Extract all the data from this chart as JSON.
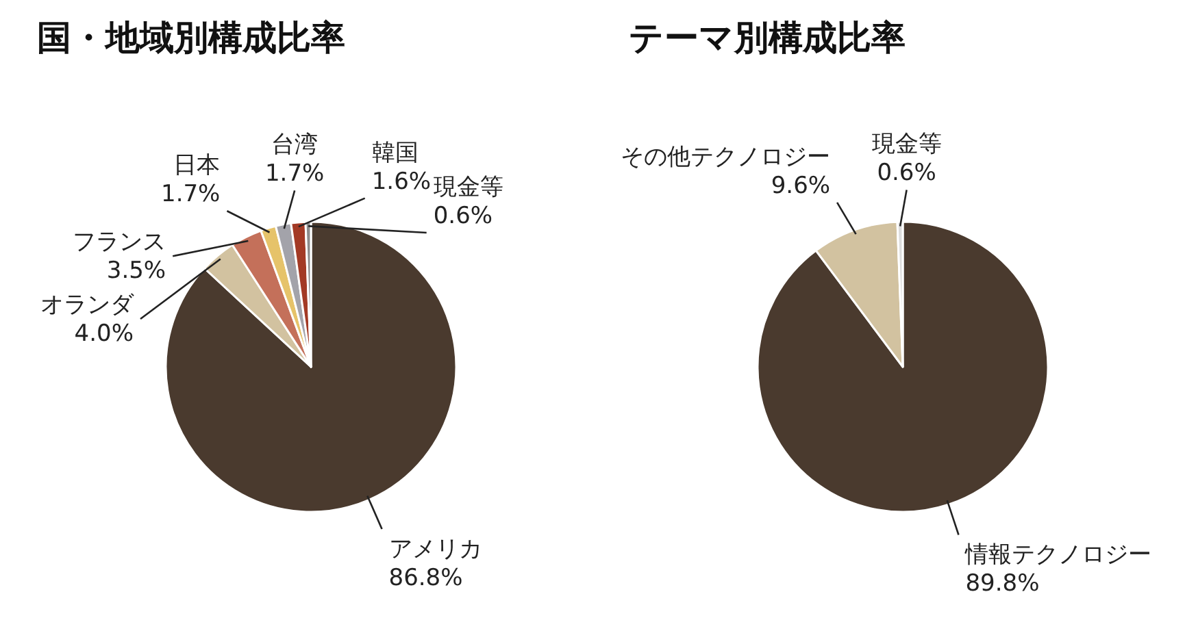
{
  "chart_data": [
    {
      "type": "pie",
      "title": "国・地域別構成比率",
      "categories": [
        "アメリカ",
        "オランダ",
        "フランス",
        "日本",
        "台湾",
        "韓国",
        "現金等"
      ],
      "values": [
        86.8,
        4.0,
        3.5,
        1.7,
        1.7,
        1.6,
        0.6
      ],
      "value_labels": [
        "86.8%",
        "4.0%",
        "3.5%",
        "1.7%",
        "1.7%",
        "1.6%",
        "0.6%"
      ],
      "colors": [
        "#4a3a2e",
        "#d2c2a0",
        "#c4705a",
        "#e6c36a",
        "#a3a3aa",
        "#a33a25",
        "#8c8c8c"
      ]
    },
    {
      "type": "pie",
      "title": "テーマ別構成比率",
      "categories": [
        "情報テクノロジー",
        "その他テクノロジー",
        "現金等"
      ],
      "values": [
        89.8,
        9.6,
        0.6
      ],
      "value_labels": [
        "89.8%",
        "9.6%",
        "0.6%"
      ],
      "colors": [
        "#4a3a2e",
        "#d2c2a0",
        "#dcdcdc"
      ]
    }
  ]
}
